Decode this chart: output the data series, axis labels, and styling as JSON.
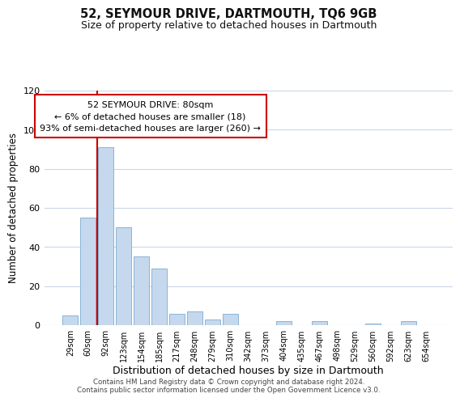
{
  "title": "52, SEYMOUR DRIVE, DARTMOUTH, TQ6 9GB",
  "subtitle": "Size of property relative to detached houses in Dartmouth",
  "xlabel": "Distribution of detached houses by size in Dartmouth",
  "ylabel": "Number of detached properties",
  "bar_labels": [
    "29sqm",
    "60sqm",
    "92sqm",
    "123sqm",
    "154sqm",
    "185sqm",
    "217sqm",
    "248sqm",
    "279sqm",
    "310sqm",
    "342sqm",
    "373sqm",
    "404sqm",
    "435sqm",
    "467sqm",
    "498sqm",
    "529sqm",
    "560sqm",
    "592sqm",
    "623sqm",
    "654sqm"
  ],
  "bar_values": [
    5,
    55,
    91,
    50,
    35,
    29,
    6,
    7,
    3,
    6,
    0,
    0,
    2,
    0,
    2,
    0,
    0,
    1,
    0,
    2,
    0
  ],
  "bar_color": "#c5d8ed",
  "bar_edge_color": "#8ab4d4",
  "vline_color": "#cc0000",
  "ylim": [
    0,
    120
  ],
  "yticks": [
    0,
    20,
    40,
    60,
    80,
    100,
    120
  ],
  "annotation_title": "52 SEYMOUR DRIVE: 80sqm",
  "annotation_line1": "← 6% of detached houses are smaller (18)",
  "annotation_line2": "93% of semi-detached houses are larger (260) →",
  "annotation_box_color": "#ffffff",
  "annotation_box_edge": "#cc0000",
  "footer_line1": "Contains HM Land Registry data © Crown copyright and database right 2024.",
  "footer_line2": "Contains public sector information licensed under the Open Government Licence v3.0.",
  "background_color": "#ffffff",
  "grid_color": "#c8d8e8"
}
